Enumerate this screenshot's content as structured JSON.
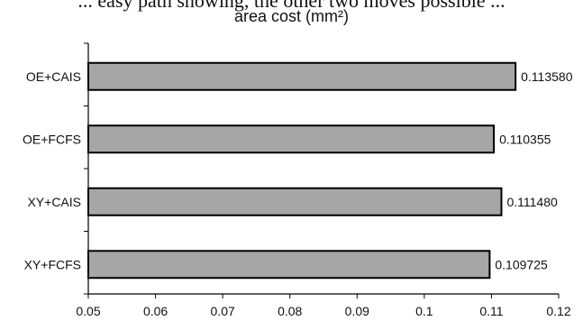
{
  "header_cut_text": "... easy path showing, the other two moves possible ...",
  "chart_data": {
    "type": "bar",
    "orientation": "horizontal",
    "title": "area cost (mm²)",
    "categories": [
      "OE+CAIS",
      "OE+FCFS",
      "XY+CAIS",
      "XY+FCFS"
    ],
    "values": [
      0.11358,
      0.110355,
      0.11148,
      0.109725
    ],
    "value_labels": [
      "0.113580",
      "0.110355",
      "0.111480",
      "0.109725"
    ],
    "xlim": [
      0.05,
      0.12
    ],
    "x_ticks": [
      "0.05",
      "0.06",
      "0.07",
      "0.08",
      "0.09",
      "0.1",
      "0.11",
      "0.12"
    ],
    "xlabel": "",
    "ylabel": "",
    "grid": false,
    "bar_color": "#a6a6a6",
    "bar_edge_color": "#000000"
  }
}
